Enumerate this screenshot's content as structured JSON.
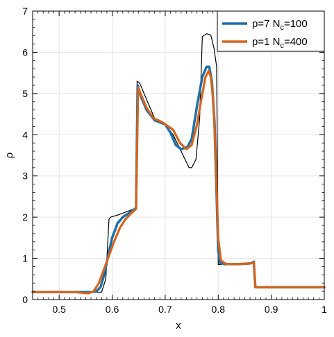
{
  "chart_data": {
    "type": "line",
    "xlabel": "x",
    "ylabel": "ρ",
    "xlim": [
      0.45,
      1.0
    ],
    "ylim": [
      0,
      7
    ],
    "xticks": [
      0.5,
      0.6,
      0.7,
      0.8,
      0.9,
      1.0
    ],
    "xtick_labels": [
      "0.5",
      "0.6",
      "0.7",
      "0.8",
      "0.9",
      "1"
    ],
    "yticks": [
      0,
      1,
      2,
      3,
      4,
      5,
      6,
      7
    ],
    "ytick_labels": [
      "0",
      "1",
      "2",
      "3",
      "4",
      "5",
      "6",
      "7"
    ],
    "grid": true,
    "legend_position": "top-right",
    "series": [
      {
        "key": "reference",
        "color": "#000000",
        "points": [
          [
            0.45,
            0.18
          ],
          [
            0.58,
            0.18
          ],
          [
            0.588,
            0.5
          ],
          [
            0.594,
            1.95
          ],
          [
            0.597,
            2.0
          ],
          [
            0.61,
            2.05
          ],
          [
            0.625,
            2.12
          ],
          [
            0.645,
            2.22
          ],
          [
            0.647,
            5.3
          ],
          [
            0.652,
            5.25
          ],
          [
            0.665,
            4.85
          ],
          [
            0.68,
            4.4
          ],
          [
            0.7,
            4.25
          ],
          [
            0.715,
            4.0
          ],
          [
            0.73,
            3.6
          ],
          [
            0.745,
            3.2
          ],
          [
            0.75,
            3.2
          ],
          [
            0.758,
            3.4
          ],
          [
            0.765,
            4.4
          ],
          [
            0.77,
            6.38
          ],
          [
            0.778,
            6.45
          ],
          [
            0.786,
            6.42
          ],
          [
            0.792,
            6.1
          ],
          [
            0.797,
            5.65
          ],
          [
            0.8,
            0.85
          ],
          [
            0.81,
            0.86
          ],
          [
            0.84,
            0.86
          ],
          [
            0.862,
            0.88
          ],
          [
            0.867,
            0.9
          ],
          [
            0.869,
            0.32
          ],
          [
            0.9,
            0.31
          ],
          [
            1.0,
            0.3
          ]
        ]
      },
      {
        "key": "p7",
        "name": "p=7 N",
        "name_sub": "c",
        "name_suffix": "=100",
        "color": "#1f6faa",
        "points": [
          [
            0.45,
            0.18
          ],
          [
            0.56,
            0.18
          ],
          [
            0.57,
            0.2
          ],
          [
            0.578,
            0.3
          ],
          [
            0.585,
            0.6
          ],
          [
            0.593,
            1.1
          ],
          [
            0.6,
            1.5
          ],
          [
            0.61,
            1.85
          ],
          [
            0.62,
            2.0
          ],
          [
            0.632,
            2.1
          ],
          [
            0.645,
            2.22
          ],
          [
            0.648,
            5.2
          ],
          [
            0.655,
            4.9
          ],
          [
            0.665,
            4.6
          ],
          [
            0.68,
            4.35
          ],
          [
            0.7,
            4.25
          ],
          [
            0.71,
            4.05
          ],
          [
            0.72,
            3.75
          ],
          [
            0.73,
            3.65
          ],
          [
            0.742,
            3.7
          ],
          [
            0.75,
            3.9
          ],
          [
            0.76,
            4.7
          ],
          [
            0.77,
            5.4
          ],
          [
            0.778,
            5.65
          ],
          [
            0.783,
            5.65
          ],
          [
            0.788,
            5.3
          ],
          [
            0.793,
            4.3
          ],
          [
            0.797,
            2.5
          ],
          [
            0.8,
            1.2
          ],
          [
            0.803,
            0.9
          ],
          [
            0.812,
            0.86
          ],
          [
            0.84,
            0.86
          ],
          [
            0.862,
            0.88
          ],
          [
            0.867,
            0.92
          ],
          [
            0.87,
            0.3
          ],
          [
            0.9,
            0.3
          ],
          [
            1.0,
            0.3
          ]
        ]
      },
      {
        "key": "p1",
        "name": "p=1 N",
        "name_sub": "c",
        "name_suffix": "=400",
        "color": "#d4651c",
        "points": [
          [
            0.45,
            0.18
          ],
          [
            0.53,
            0.18
          ],
          [
            0.555,
            0.15
          ],
          [
            0.565,
            0.2
          ],
          [
            0.575,
            0.4
          ],
          [
            0.585,
            0.75
          ],
          [
            0.595,
            1.1
          ],
          [
            0.605,
            1.45
          ],
          [
            0.615,
            1.75
          ],
          [
            0.625,
            1.95
          ],
          [
            0.635,
            2.08
          ],
          [
            0.645,
            2.2
          ],
          [
            0.649,
            5.15
          ],
          [
            0.655,
            4.95
          ],
          [
            0.665,
            4.65
          ],
          [
            0.678,
            4.4
          ],
          [
            0.695,
            4.3
          ],
          [
            0.715,
            4.12
          ],
          [
            0.728,
            3.8
          ],
          [
            0.74,
            3.65
          ],
          [
            0.75,
            3.75
          ],
          [
            0.76,
            4.25
          ],
          [
            0.768,
            4.85
          ],
          [
            0.776,
            5.4
          ],
          [
            0.782,
            5.55
          ],
          [
            0.786,
            5.4
          ],
          [
            0.791,
            4.8
          ],
          [
            0.795,
            3.5
          ],
          [
            0.8,
            1.5
          ],
          [
            0.805,
            0.95
          ],
          [
            0.815,
            0.86
          ],
          [
            0.84,
            0.86
          ],
          [
            0.862,
            0.88
          ],
          [
            0.867,
            0.9
          ],
          [
            0.87,
            0.3
          ],
          [
            0.9,
            0.3
          ],
          [
            1.0,
            0.3
          ]
        ]
      }
    ]
  }
}
